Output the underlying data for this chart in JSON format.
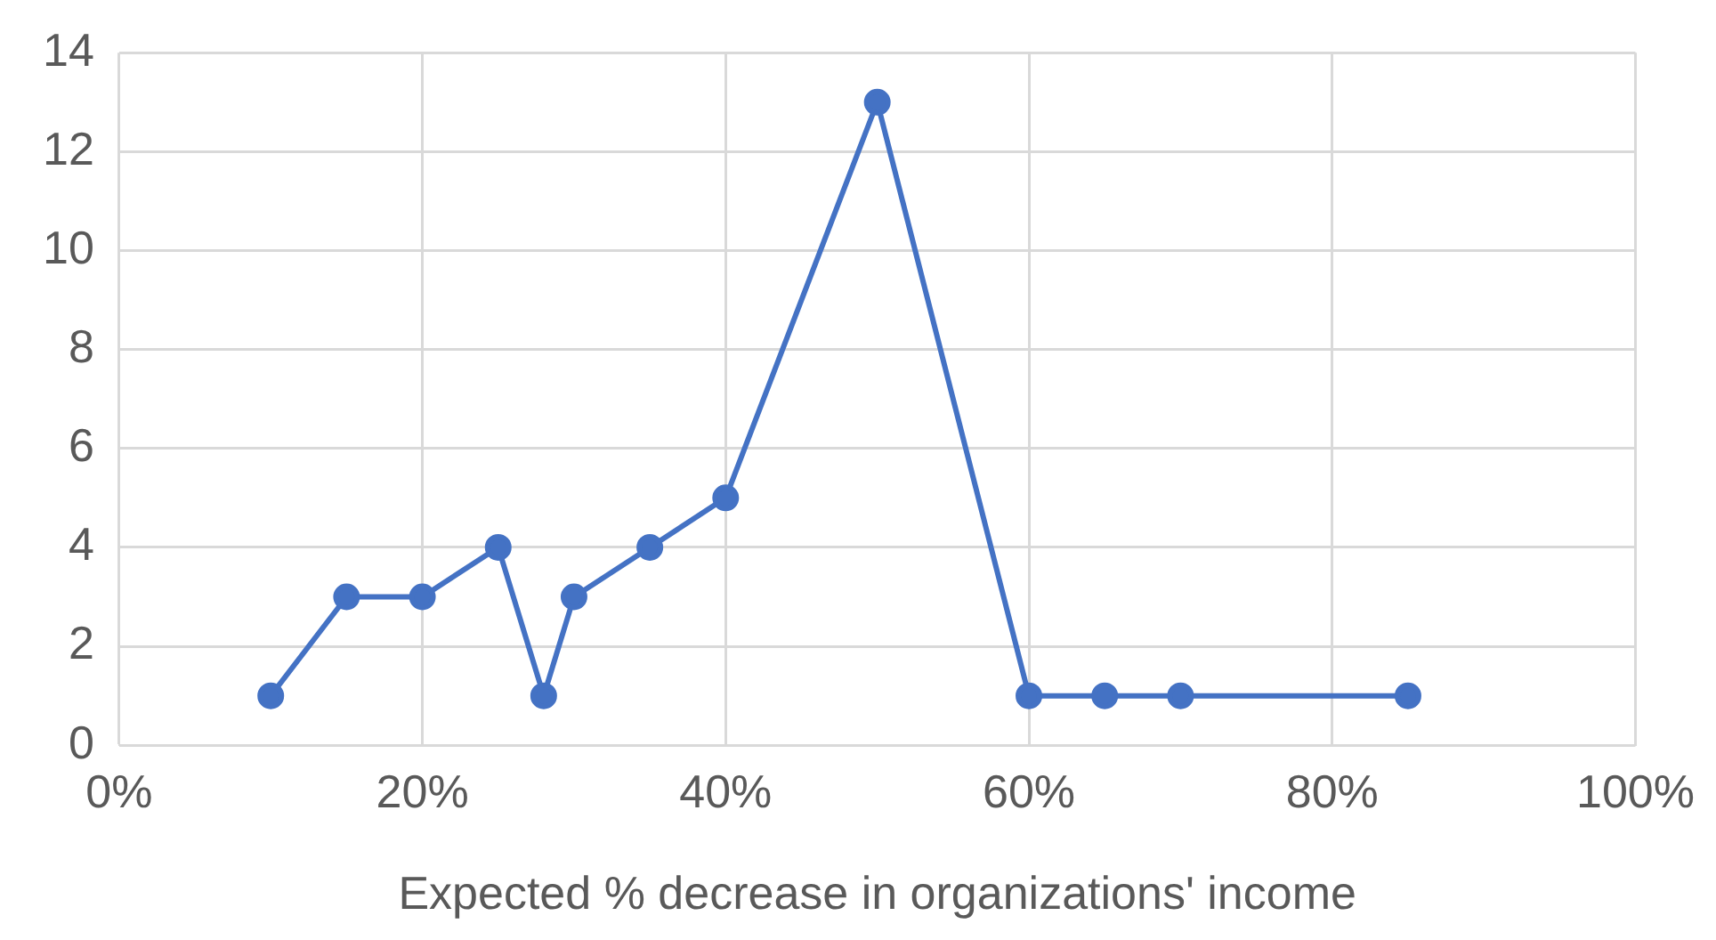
{
  "chart_data": {
    "type": "line",
    "xlabel": "Expected % decrease in organizations' income",
    "x": [
      10,
      15,
      20,
      25,
      28,
      30,
      35,
      40,
      50,
      60,
      65,
      70,
      85
    ],
    "series": [
      {
        "color": "#4472c4",
        "values": [
          1,
          3,
          3,
          4,
          1,
          3,
          4,
          5,
          13,
          1,
          1,
          1,
          1
        ]
      }
    ],
    "xlim": [
      0,
      100
    ],
    "xticks": [
      {
        "value": 0,
        "label": "0%"
      },
      {
        "value": 20,
        "label": "20%"
      },
      {
        "value": 40,
        "label": "40%"
      },
      {
        "value": 60,
        "label": "60%"
      },
      {
        "value": 80,
        "label": "80%"
      },
      {
        "value": 100,
        "label": "100%"
      }
    ],
    "ylim": [
      0,
      14
    ],
    "yticks": [
      0,
      2,
      4,
      6,
      8,
      10,
      12,
      14
    ],
    "grid": true,
    "legend": false,
    "marker": "circle",
    "line_style": "solid"
  }
}
